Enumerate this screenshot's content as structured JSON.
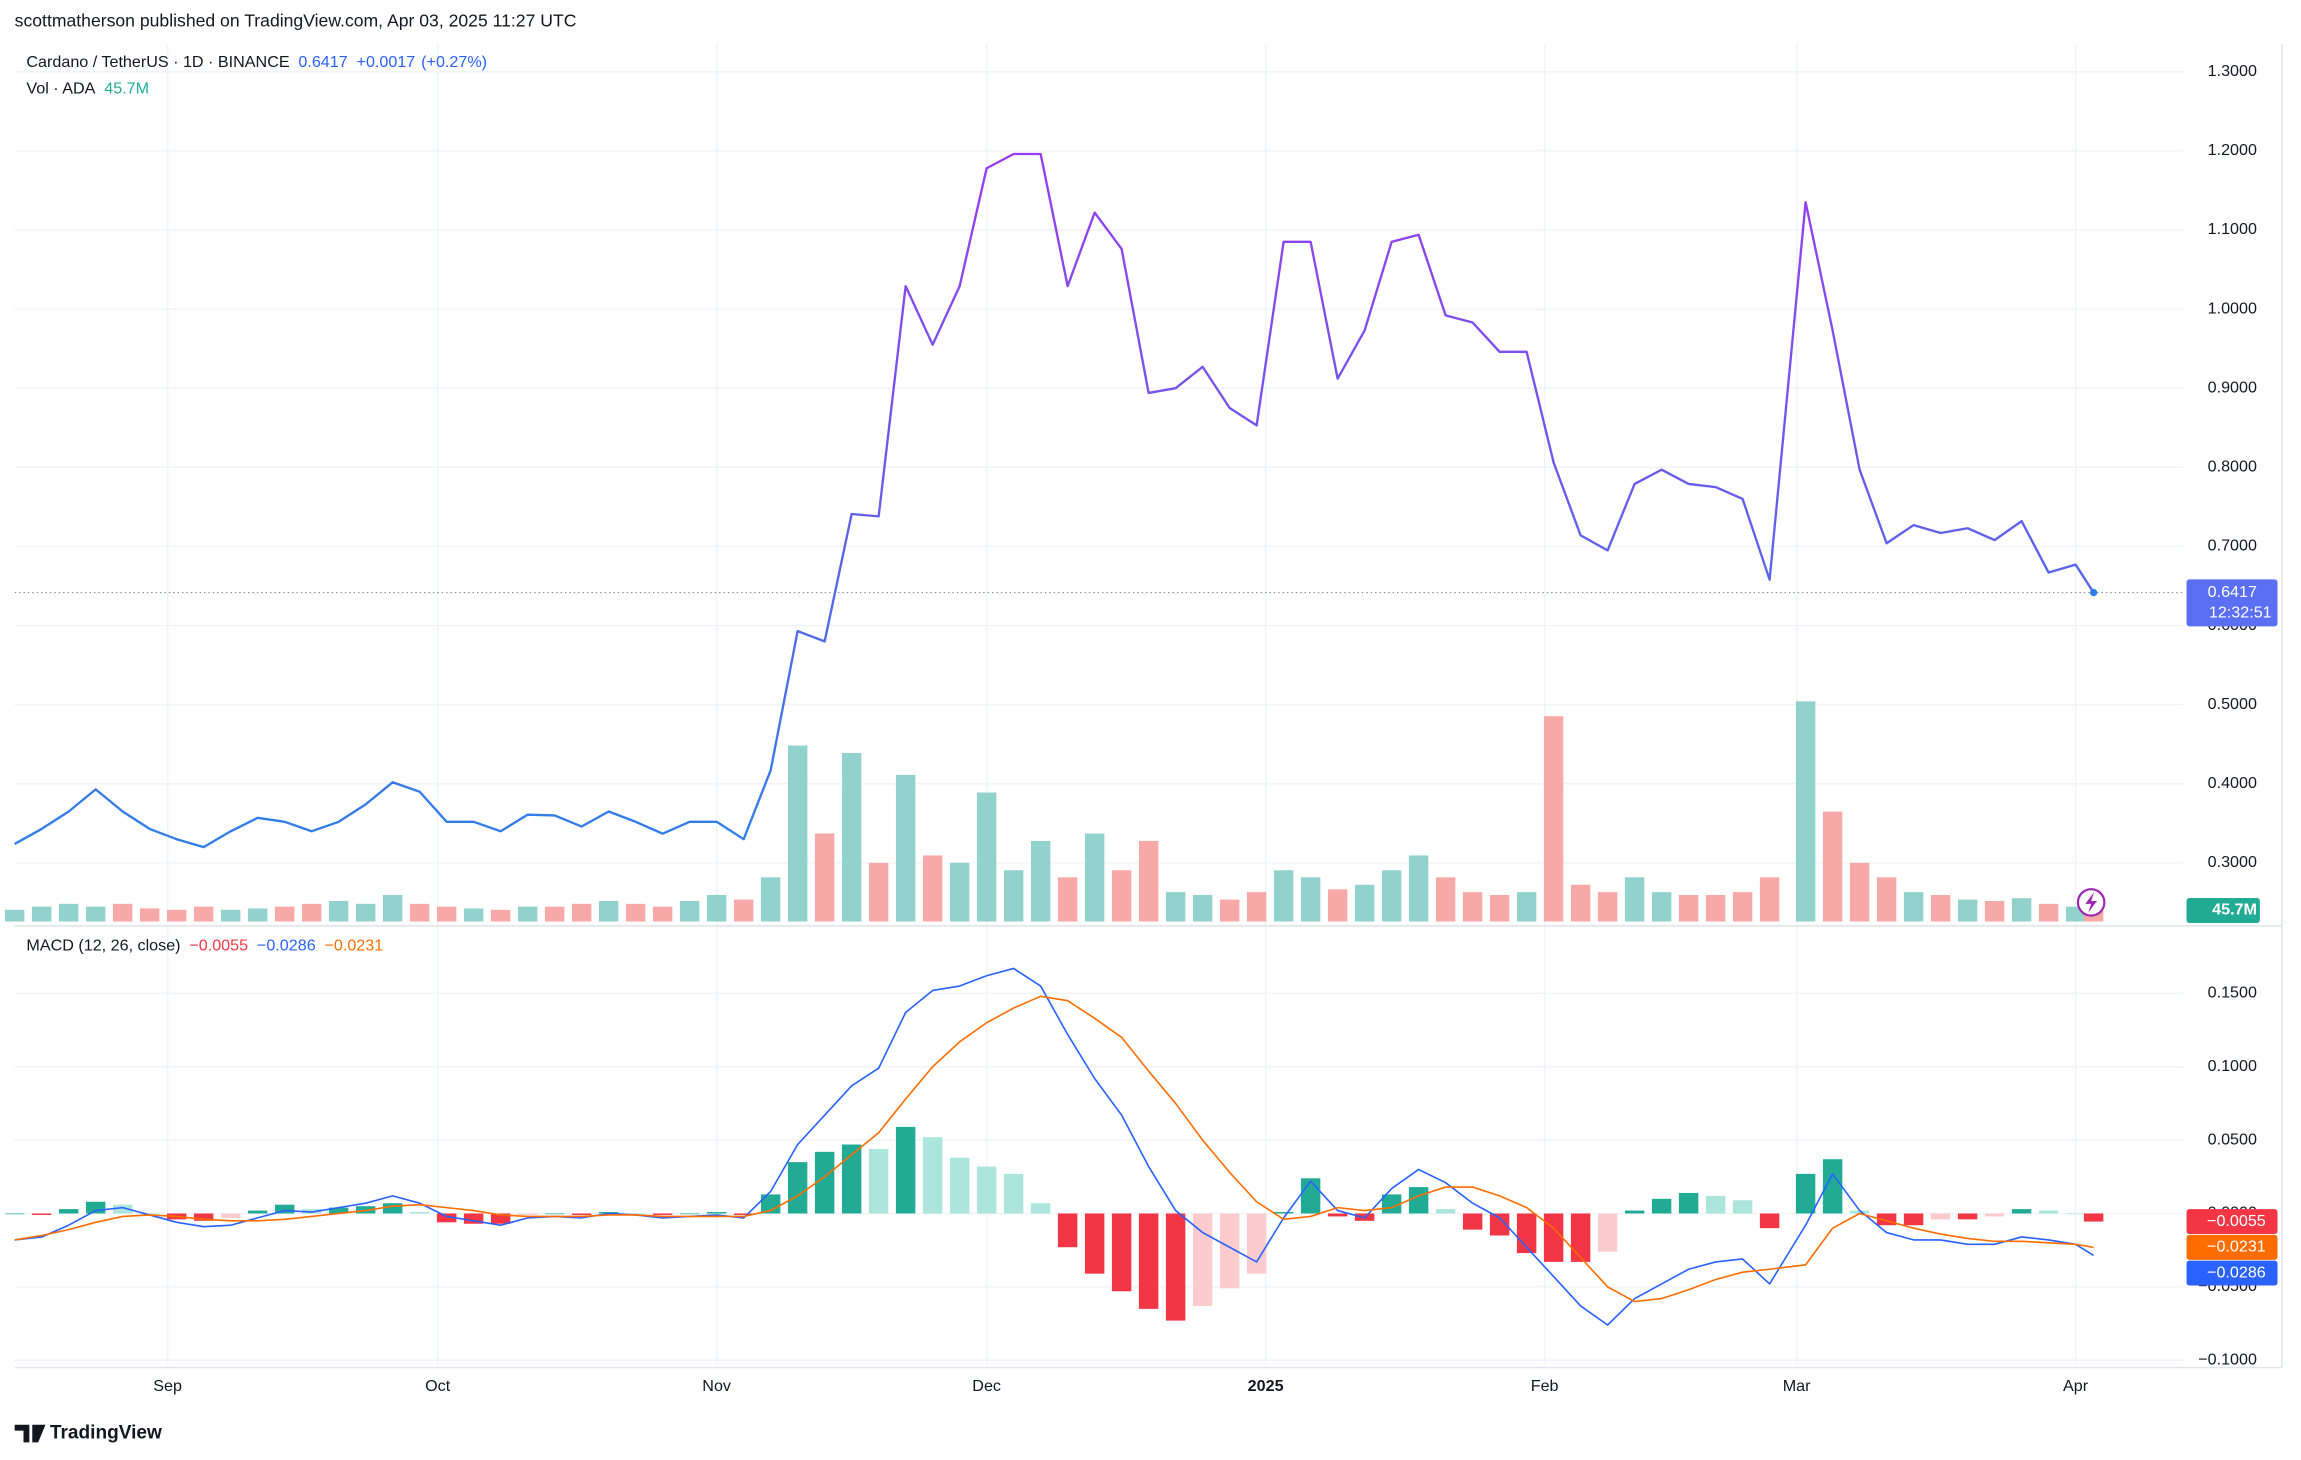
{
  "attribution": "scottmatherson published on TradingView.com, Apr 03, 2025 11:27 UTC",
  "footer": "TradingView",
  "chart_data": [
    {
      "type": "line",
      "title": "Cardano / TetherUS · 1D · BINANCE",
      "last_label": "0.6417",
      "change_label": "+0.0017",
      "change_pct_label": "(+0.27%)",
      "countdown": "12:32:51",
      "badge_color": "#5a6ff3",
      "grid": true,
      "x": [
        0,
        3,
        6,
        9,
        12,
        15,
        18,
        21,
        24,
        27,
        30,
        33,
        36,
        39,
        42,
        45,
        48,
        51,
        54,
        57,
        60,
        63,
        66,
        69,
        72,
        75,
        78,
        81,
        84,
        87,
        90,
        93,
        96,
        99,
        102,
        105,
        108,
        111,
        114,
        117,
        120,
        123,
        126,
        129,
        132,
        135,
        138,
        141,
        144,
        147,
        150,
        153,
        156,
        159,
        162,
        165,
        168,
        171,
        174,
        177,
        180,
        183,
        186,
        189,
        192,
        195,
        199,
        202,
        205,
        208,
        211,
        214,
        217,
        220,
        223,
        226,
        229,
        231
      ],
      "xlim": [
        0,
        241
      ],
      "xticks": [
        {
          "value": 17,
          "label": "Sep"
        },
        {
          "value": 47,
          "label": "Oct"
        },
        {
          "value": 78,
          "label": "Nov"
        },
        {
          "value": 108,
          "label": "Dec"
        },
        {
          "value": 139,
          "label": "2025"
        },
        {
          "value": 170,
          "label": "Feb"
        },
        {
          "value": 198,
          "label": "Mar"
        },
        {
          "value": 229,
          "label": "Apr"
        }
      ],
      "ylim": [
        0.226,
        1.335
      ],
      "yticks": [
        {
          "value": 1.3,
          "label": "1.3000"
        },
        {
          "value": 1.2,
          "label": "1.2000"
        },
        {
          "value": 1.1,
          "label": "1.1000"
        },
        {
          "value": 1.0,
          "label": "1.0000"
        },
        {
          "value": 0.9,
          "label": "0.9000"
        },
        {
          "value": 0.8,
          "label": "0.8000"
        },
        {
          "value": 0.7,
          "label": "0.7000"
        },
        {
          "value": 0.6,
          "label": "0.6000"
        },
        {
          "value": 0.5,
          "label": "0.5000"
        },
        {
          "value": 0.4,
          "label": "0.4000"
        },
        {
          "value": 0.3,
          "label": "0.3000"
        }
      ],
      "series": [
        {
          "colors": [
            "#2f7fe8",
            "#9a3cf0"
          ],
          "values": [
            0.324,
            0.343,
            0.365,
            0.393,
            0.365,
            0.343,
            0.33,
            0.32,
            0.34,
            0.357,
            0.352,
            0.34,
            0.352,
            0.374,
            0.402,
            0.39,
            0.352,
            0.352,
            0.34,
            0.361,
            0.36,
            0.346,
            0.365,
            0.352,
            0.337,
            0.352,
            0.352,
            0.33,
            0.417,
            0.593,
            0.58,
            0.741,
            0.738,
            1.029,
            0.955,
            1.029,
            1.178,
            1.196,
            1.196,
            1.029,
            1.122,
            1.076,
            0.894,
            0.9,
            0.927,
            0.875,
            0.853,
            1.085,
            1.085,
            0.912,
            0.973,
            1.085,
            1.094,
            0.992,
            0.983,
            0.946,
            0.946,
            0.806,
            0.714,
            0.695,
            0.779,
            0.797,
            0.779,
            0.775,
            0.76,
            0.658,
            1.135,
            0.973,
            0.797,
            0.704,
            0.727,
            0.717,
            0.723,
            0.708,
            0.732,
            0.667,
            0.677,
            0.6417
          ]
        }
      ]
    },
    {
      "type": "bar",
      "title": "Vol · ADA",
      "last_label": "45.7M",
      "badge_color": "#22ab94",
      "colors": {
        "up": "#92d2cc",
        "down": "#f7a9a7"
      },
      "values": [
        33,
        42,
        50,
        42,
        50,
        37,
        33,
        42,
        33,
        37,
        42,
        50,
        58,
        50,
        75,
        50,
        42,
        37,
        33,
        42,
        42,
        50,
        58,
        50,
        42,
        58,
        75,
        62,
        125,
        498,
        249,
        477,
        166,
        415,
        187,
        166,
        365,
        145,
        228,
        125,
        249,
        145,
        228,
        83,
        75,
        62,
        83,
        145,
        125,
        91,
        104,
        145,
        187,
        125,
        83,
        75,
        83,
        581,
        104,
        83,
        125,
        83,
        75,
        75,
        83,
        125,
        623,
        311,
        166,
        125,
        83,
        75,
        62,
        58,
        66,
        50,
        42,
        45.7
      ]
    },
    {
      "type": "line",
      "title": "MACD (12, 26, close)",
      "grid": true,
      "ylim": [
        -0.103,
        0.194
      ],
      "yticks": [
        {
          "value": 0.15,
          "label": "0.1500"
        },
        {
          "value": 0.1,
          "label": "0.1000"
        },
        {
          "value": 0.05,
          "label": "0.0500"
        },
        {
          "value": 0,
          "label": "0.0000"
        },
        {
          "value": -0.05,
          "label": "−0.0500"
        },
        {
          "value": -0.1,
          "label": "−0.1000"
        }
      ],
      "series": [
        {
          "color": "#2962ff",
          "value_label": "−0.0286",
          "values": [
            -0.018,
            -0.016,
            -0.008,
            0.002,
            0.004,
            -0.001,
            -0.006,
            -0.009,
            -0.008,
            -0.003,
            0.002,
            0.001,
            0.004,
            0.007,
            0.012,
            0.007,
            -0.002,
            -0.005,
            -0.008,
            -0.003,
            -0.002,
            -0.003,
            0,
            -0.001,
            -0.003,
            -0.002,
            -0.001,
            -0.003,
            0.015,
            0.047,
            0.067,
            0.087,
            0.099,
            0.137,
            0.152,
            0.155,
            0.162,
            0.167,
            0.155,
            0.122,
            0.092,
            0.067,
            0.032,
            0.002,
            -0.013,
            -0.023,
            -0.033,
            -0.003,
            0.022,
            0.002,
            -0.003,
            0.017,
            0.03,
            0.021,
            0.007,
            -0.003,
            -0.023,
            -0.043,
            -0.063,
            -0.076,
            -0.058,
            -0.048,
            -0.038,
            -0.033,
            -0.031,
            -0.048,
            -0.008,
            0.027,
            0.002,
            -0.013,
            -0.018,
            -0.018,
            -0.021,
            -0.021,
            -0.016,
            -0.018,
            -0.021,
            -0.0286
          ]
        },
        {
          "color": "#ff6d00",
          "value_label": "−0.0231",
          "values": [
            -0.018,
            -0.015,
            -0.011,
            -0.006,
            -0.002,
            -0.001,
            -0.002,
            -0.004,
            -0.005,
            -0.005,
            -0.004,
            -0.002,
            0,
            0.002,
            0.005,
            0.006,
            0.004,
            0.002,
            -0.001,
            -0.002,
            -0.002,
            -0.002,
            -0.001,
            -0.001,
            -0.002,
            -0.002,
            -0.002,
            -0.002,
            0.002,
            0.012,
            0.025,
            0.04,
            0.055,
            0.078,
            0.1,
            0.117,
            0.13,
            0.14,
            0.148,
            0.145,
            0.133,
            0.12,
            0.097,
            0.075,
            0.05,
            0.028,
            0.008,
            -0.004,
            -0.002,
            0.004,
            0.002,
            0.004,
            0.012,
            0.018,
            0.018,
            0.012,
            0.004,
            -0.01,
            -0.03,
            -0.05,
            -0.06,
            -0.058,
            -0.052,
            -0.045,
            -0.04,
            -0.038,
            -0.035,
            -0.01,
            0,
            -0.005,
            -0.01,
            -0.014,
            -0.017,
            -0.019,
            -0.019,
            -0.02,
            -0.021,
            -0.0231
          ]
        }
      ]
    },
    {
      "type": "bar",
      "ylim": [
        -0.103,
        0.194
      ],
      "value_label": "−0.0055",
      "color": "#f23645",
      "colors": {
        "rising_above": "#22ab94",
        "falling_above": "#ace5dc",
        "falling_below": "#f23645",
        "rising_below": "#fccbcd"
      },
      "values": [
        0,
        -0.001,
        0.003,
        0.008,
        0.006,
        0,
        -0.004,
        -0.005,
        -0.003,
        0.002,
        0.006,
        0.003,
        0.004,
        0.005,
        0.007,
        0.001,
        -0.006,
        -0.007,
        -0.007,
        -0.001,
        0,
        -0.001,
        0.001,
        0,
        -0.001,
        0,
        0.001,
        -0.001,
        0.013,
        0.035,
        0.042,
        0.047,
        0.044,
        0.059,
        0.052,
        0.038,
        0.032,
        0.027,
        0.007,
        -0.023,
        -0.041,
        -0.053,
        -0.065,
        -0.073,
        -0.063,
        -0.051,
        -0.041,
        0.001,
        0.024,
        -0.002,
        -0.005,
        0.013,
        0.018,
        0.003,
        -0.011,
        -0.015,
        -0.027,
        -0.033,
        -0.033,
        -0.026,
        0.002,
        0.01,
        0.014,
        0.012,
        0.009,
        -0.01,
        0.027,
        0.037,
        0.002,
        -0.008,
        -0.008,
        -0.004,
        -0.004,
        -0.002,
        0.003,
        0.002,
        0,
        -0.0055
      ]
    }
  ]
}
